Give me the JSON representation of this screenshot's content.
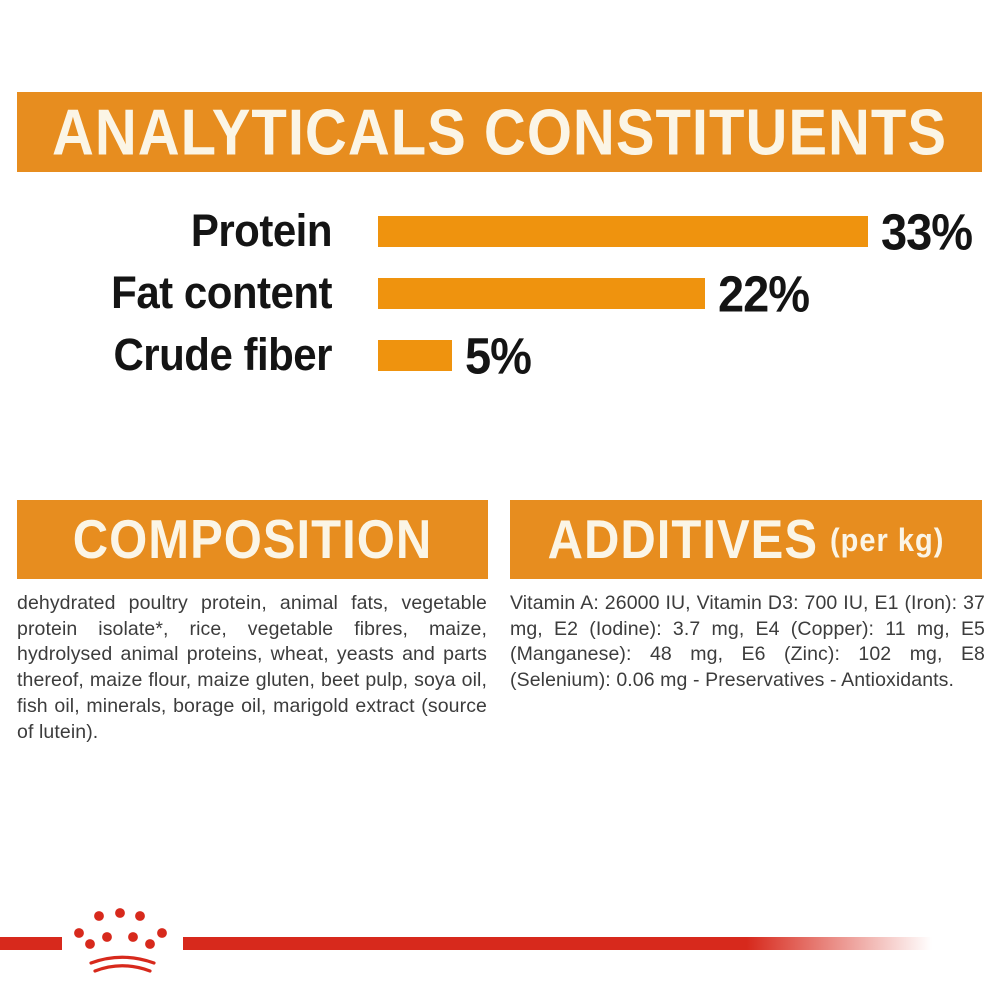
{
  "colors": {
    "banner_orange": "#E78D1F",
    "bar_orange": "#EF930E",
    "brand_red": "#D7291C",
    "banner_text": "#FBF5E6",
    "label_black": "#141414",
    "body_gray": "#3C3C3C"
  },
  "analyticals": {
    "title": "ANALYTICALS CONSTITUENTS"
  },
  "chart_data": {
    "type": "bar",
    "orientation": "horizontal",
    "title": "ANALYTICALS CONSTITUENTS",
    "categories": [
      "Protein",
      "Fat content",
      "Crude fiber"
    ],
    "values": [
      33,
      22,
      5
    ],
    "unit": "%",
    "value_labels": [
      "33%",
      "22%",
      "5%"
    ],
    "xlim": [
      0,
      33
    ],
    "bar_color": "#EF930E",
    "grid": false,
    "legend": false,
    "axis_labels": false
  },
  "composition": {
    "title": "COMPOSITION",
    "body": "dehydrated poultry protein, animal fats, vegetable protein isolate*, rice, vegetable fibres, maize, hydrolysed animal proteins, wheat, yeasts and parts thereof, maize flour, maize gluten, beet pulp, soya oil, fish oil, minerals, borage oil, marigold extract (source of lutein)."
  },
  "additives": {
    "title": "ADDITIVES",
    "unit_note": "(per kg)",
    "body": "Vitamin A: 26000 IU, Vitamin D3: 700 IU, E1 (Iron): 37 mg, E2 (Iodine): 3.7 mg, E4 (Copper): 11 mg, E5 (Manganese): 48 mg, E6 (Zinc): 102 mg, E8 (Selenium): 0.06 mg - Preservatives - Antioxidants."
  },
  "footer": {
    "logo_name": "royal-canin-crown"
  }
}
